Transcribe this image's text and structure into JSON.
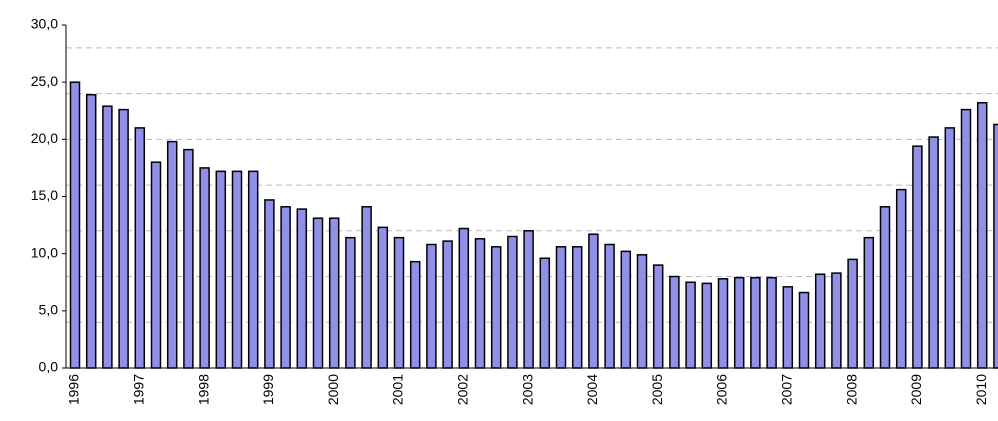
{
  "chart_data": {
    "type": "bar",
    "categories": [
      "1996",
      null,
      null,
      null,
      "1997",
      null,
      null,
      null,
      "1998",
      null,
      null,
      null,
      "1999",
      null,
      null,
      null,
      "2000",
      null,
      null,
      null,
      "2001",
      null,
      null,
      null,
      "2002",
      null,
      null,
      null,
      "2003",
      null,
      null,
      null,
      "2004",
      null,
      null,
      null,
      "2005",
      null,
      null,
      null,
      "2006",
      null,
      null,
      null,
      "2007",
      null,
      null,
      null,
      "2008",
      null,
      null,
      null,
      "2009",
      null,
      null,
      null,
      "2010",
      null
    ],
    "values": [
      25.0,
      23.9,
      22.9,
      22.6,
      21.0,
      18.0,
      19.8,
      19.1,
      17.5,
      17.2,
      17.2,
      17.2,
      14.7,
      14.1,
      13.9,
      13.1,
      13.1,
      11.4,
      14.1,
      12.3,
      11.4,
      9.3,
      10.8,
      11.1,
      12.2,
      11.3,
      10.6,
      11.5,
      12.0,
      9.6,
      10.6,
      10.6,
      11.7,
      10.8,
      10.2,
      9.9,
      9.0,
      8.0,
      7.5,
      7.4,
      7.8,
      7.9,
      7.9,
      7.9,
      7.1,
      6.6,
      8.2,
      8.3,
      9.5,
      11.4,
      14.1,
      15.6,
      19.4,
      20.2,
      21.0,
      22.6,
      23.2,
      21.3
    ],
    "color": "#9090e8",
    "ylim": [
      0,
      30
    ],
    "yticks": [
      {
        "value": 0,
        "label": "0,0"
      },
      {
        "value": 5,
        "label": "5,0"
      },
      {
        "value": 10,
        "label": "10,0"
      },
      {
        "value": 15,
        "label": "15,0"
      },
      {
        "value": 20,
        "label": "20,0"
      },
      {
        "value": 25,
        "label": "25,0"
      },
      {
        "value": 30,
        "label": "30,0"
      }
    ],
    "grid": true,
    "gridlines": [
      4,
      8,
      12,
      16,
      20,
      24,
      28
    ]
  }
}
